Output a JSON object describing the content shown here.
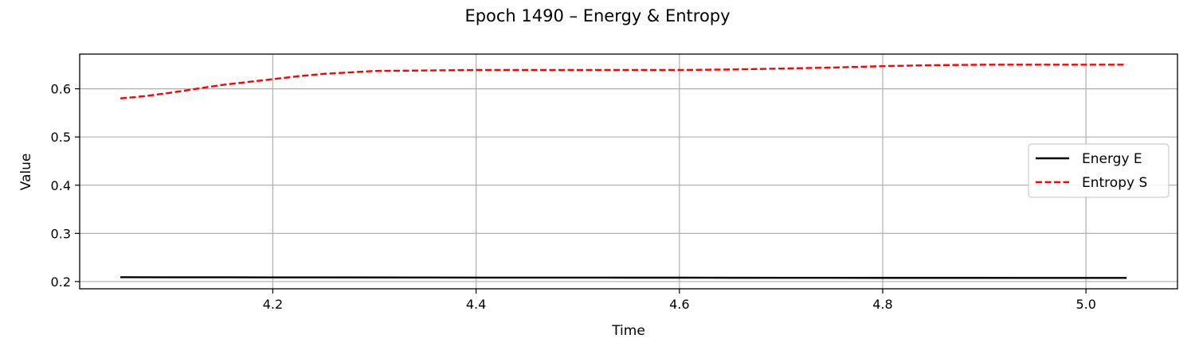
{
  "chart_data": {
    "type": "line",
    "title": "Epoch 1490 – Energy & Entropy",
    "xlabel": "Time",
    "ylabel": "Value",
    "xlim": [
      4.01,
      5.09
    ],
    "ylim": [
      0.185,
      0.672
    ],
    "xticks": [
      4.2,
      4.4,
      4.6,
      4.8,
      5.0
    ],
    "xtick_labels": [
      "4.2",
      "4.4",
      "4.6",
      "4.8",
      "5.0"
    ],
    "yticks": [
      0.2,
      0.3,
      0.4,
      0.5,
      0.6
    ],
    "ytick_labels": [
      "0.2",
      "0.3",
      "0.4",
      "0.5",
      "0.6"
    ],
    "grid": true,
    "legend_position": "center-right",
    "series": [
      {
        "name": "Energy E",
        "color": "#000000",
        "style": "solid",
        "x": [
          4.05,
          4.1,
          4.15,
          4.2,
          4.25,
          4.3,
          4.35,
          4.4,
          4.45,
          4.5,
          4.55,
          4.6,
          4.65,
          4.7,
          4.75,
          4.8,
          4.85,
          4.9,
          4.95,
          5.0,
          5.04
        ],
        "y": [
          0.209,
          0.2089,
          0.2088,
          0.2087,
          0.2086,
          0.2085,
          0.2084,
          0.2083,
          0.2082,
          0.2082,
          0.2081,
          0.2081,
          0.2079,
          0.2078,
          0.2078,
          0.2077,
          0.2077,
          0.2077,
          0.2076,
          0.2076,
          0.2076
        ]
      },
      {
        "name": "Entropy S",
        "color": "#ff0000",
        "style": "dashed",
        "x": [
          4.05,
          4.075,
          4.1,
          4.125,
          4.15,
          4.175,
          4.2,
          4.225,
          4.25,
          4.275,
          4.3,
          4.35,
          4.4,
          4.45,
          4.5,
          4.55,
          4.6,
          4.65,
          4.7,
          4.75,
          4.8,
          4.85,
          4.9,
          4.95,
          5.0,
          5.04
        ],
        "y": [
          0.58,
          0.585,
          0.592,
          0.6,
          0.608,
          0.614,
          0.62,
          0.626,
          0.631,
          0.634,
          0.637,
          0.638,
          0.639,
          0.639,
          0.639,
          0.639,
          0.639,
          0.64,
          0.642,
          0.644,
          0.647,
          0.649,
          0.65,
          0.65,
          0.65,
          0.65
        ]
      }
    ]
  }
}
